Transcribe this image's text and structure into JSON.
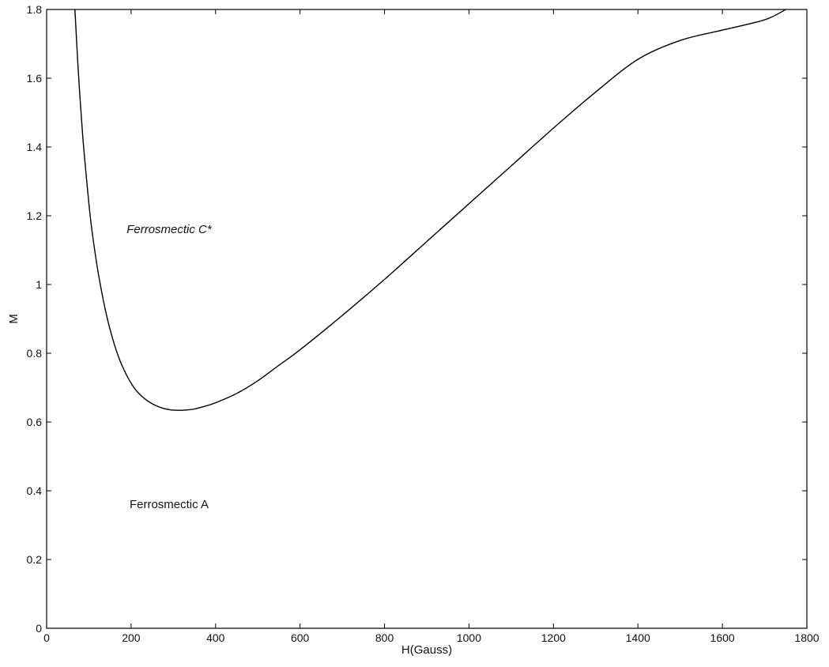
{
  "chart_data": {
    "type": "line",
    "title": "",
    "xlabel": "H(Gauss)",
    "ylabel": "M",
    "xlim": [
      0,
      1800
    ],
    "ylim": [
      0,
      1.8
    ],
    "xticks": [
      0,
      200,
      400,
      600,
      800,
      1000,
      1200,
      1400,
      1600,
      1800
    ],
    "xtick_labels": [
      "0",
      "200",
      "400",
      "600",
      "800",
      "1000",
      "1200",
      "1400",
      "1600",
      "1800"
    ],
    "yticks": [
      0,
      0.2,
      0.4,
      0.6,
      0.8,
      1.0,
      1.2,
      1.4,
      1.6,
      1.8
    ],
    "ytick_labels": [
      "0",
      "0.2",
      "0.4",
      "0.6",
      "0.8",
      "1",
      "1.2",
      "1.4",
      "1.6",
      "1.8"
    ],
    "grid": false,
    "legend": "none",
    "series": [
      {
        "color": "#000000",
        "x": [
          67,
          75,
          85,
          95,
          105,
          120,
          135,
          150,
          170,
          190,
          210,
          230,
          250,
          270,
          290,
          310,
          330,
          350,
          375,
          400,
          450,
          500,
          550,
          600,
          700,
          800,
          900,
          1000,
          1100,
          1200,
          1300,
          1400,
          1500,
          1600,
          1700,
          1750
        ],
        "y": [
          1.8,
          1.62,
          1.44,
          1.3,
          1.18,
          1.05,
          0.95,
          0.87,
          0.79,
          0.735,
          0.695,
          0.67,
          0.653,
          0.642,
          0.636,
          0.634,
          0.635,
          0.638,
          0.646,
          0.656,
          0.683,
          0.72,
          0.765,
          0.81,
          0.91,
          1.015,
          1.125,
          1.235,
          1.345,
          1.455,
          1.56,
          1.655,
          1.71,
          1.74,
          1.77,
          1.8
        ]
      }
    ],
    "annotations": [
      {
        "text": "Ferrosmectic C*",
        "x": 290,
        "y": 1.15,
        "style": "italic"
      },
      {
        "text": "Ferrosmectic A",
        "x": 290,
        "y": 0.35,
        "style": "normal"
      }
    ]
  }
}
